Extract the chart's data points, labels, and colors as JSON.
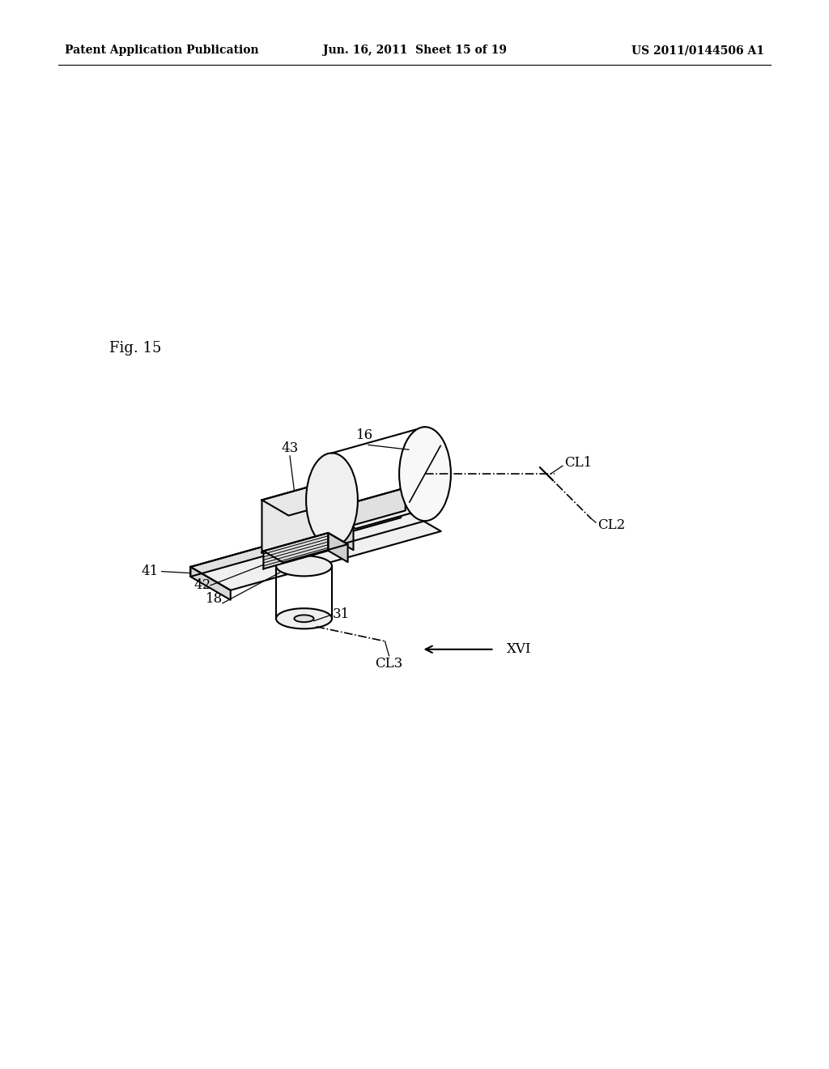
{
  "background_color": "#ffffff",
  "header_left": "Patent Application Publication",
  "header_center": "Jun. 16, 2011  Sheet 15 of 19",
  "header_right": "US 2011/0144506 A1",
  "fig_label": "Fig. 15",
  "line_color": "#000000",
  "line_width": 1.5,
  "header_fontsize": 10,
  "label_fontsize": 12
}
